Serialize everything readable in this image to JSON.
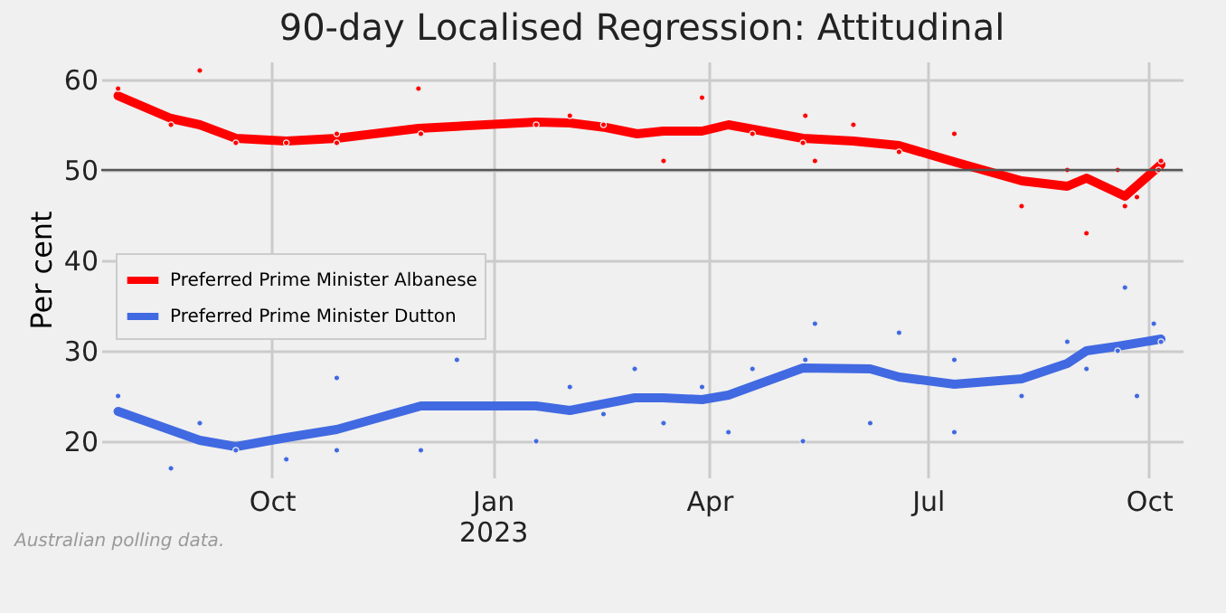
{
  "chart_data": {
    "type": "line",
    "title": "90-day Localised Regression: Attitudinal",
    "ylabel": "Per cent",
    "annotations": [
      "Australian polling data."
    ],
    "xlim": [
      "2022-07-22",
      "2023-10-15"
    ],
    "xticks": [
      {
        "value": "2022-10-01",
        "label": "Oct"
      },
      {
        "value": "2023-01-01",
        "label": "Jan\n2023"
      },
      {
        "value": "2023-04-01",
        "label": "Apr"
      },
      {
        "value": "2023-07-01",
        "label": "Jul"
      },
      {
        "value": "2023-10-01",
        "label": "Oct"
      }
    ],
    "ylim": [
      16,
      62
    ],
    "yticks": [
      20,
      30,
      40,
      50,
      60
    ],
    "grid": true,
    "legend": "left",
    "ref_lines": [
      {
        "axis": "y",
        "value": 50,
        "color": "#555555"
      }
    ],
    "series": [
      {
        "type": "scatter",
        "color": "#ff0000",
        "marker": "circle",
        "x": [
          "2022-07-29",
          "2022-08-20",
          "2022-09-01",
          "2022-09-16",
          "2022-10-07",
          "2022-10-28",
          "2022-10-28",
          "2022-12-01",
          "2022-12-02",
          "2023-01-19",
          "2023-02-02",
          "2023-02-16",
          "2023-03-13",
          "2023-03-29",
          "2023-04-19",
          "2023-05-10",
          "2023-05-11",
          "2023-05-15",
          "2023-05-31",
          "2023-06-19",
          "2023-07-12",
          "2023-08-09",
          "2023-08-28",
          "2023-09-05",
          "2023-09-18",
          "2023-09-21",
          "2023-09-26",
          "2023-10-05",
          "2023-10-06"
        ],
        "values": [
          59,
          55,
          61,
          53,
          53,
          54,
          53,
          59,
          54,
          55,
          56,
          55,
          51,
          58,
          54,
          53,
          56,
          51,
          55,
          52,
          54,
          46,
          50,
          43,
          50,
          46,
          47,
          50,
          51
        ]
      },
      {
        "type": "scatter",
        "color": "#4169e1",
        "marker": "circle",
        "x": [
          "2022-07-29",
          "2022-08-20",
          "2022-09-01",
          "2022-09-16",
          "2022-10-07",
          "2022-10-28",
          "2022-10-28",
          "2022-12-02",
          "2022-12-17",
          "2023-01-19",
          "2023-02-02",
          "2023-02-16",
          "2023-03-01",
          "2023-03-13",
          "2023-03-29",
          "2023-04-09",
          "2023-04-19",
          "2023-05-10",
          "2023-05-11",
          "2023-05-15",
          "2023-06-07",
          "2023-06-19",
          "2023-07-12",
          "2023-07-12",
          "2023-08-09",
          "2023-08-28",
          "2023-09-05",
          "2023-09-18",
          "2023-09-21",
          "2023-09-26",
          "2023-10-03",
          "2023-10-06"
        ],
        "values": [
          25,
          17,
          22,
          19,
          18,
          27,
          19,
          19,
          29,
          20,
          26,
          23,
          28,
          22,
          26,
          21,
          28,
          20,
          29,
          33,
          22,
          32,
          29,
          21,
          25,
          31,
          28,
          30,
          37,
          25,
          33,
          31
        ]
      },
      {
        "type": "line",
        "name": "Preferred Prime Minister Albanese",
        "color": "#ff0000",
        "x": [
          "2022-07-29",
          "2022-08-20",
          "2022-09-01",
          "2022-09-16",
          "2022-10-07",
          "2022-10-28",
          "2022-12-01",
          "2023-01-19",
          "2023-02-02",
          "2023-02-17",
          "2023-03-02",
          "2023-03-13",
          "2023-03-29",
          "2023-04-09",
          "2023-05-10",
          "2023-05-31",
          "2023-06-19",
          "2023-07-12",
          "2023-08-09",
          "2023-08-28",
          "2023-09-05",
          "2023-09-21",
          "2023-10-06"
        ],
        "values": [
          58.2,
          55.7,
          55,
          53.5,
          53.2,
          53.5,
          54.6,
          55.3,
          55.2,
          54.7,
          54,
          54.3,
          54.3,
          55,
          53.5,
          53.2,
          52.7,
          50.9,
          48.8,
          48.2,
          49.1,
          47.1,
          50.6
        ]
      },
      {
        "type": "line",
        "name": "Preferred Prime Minister Dutton",
        "color": "#4169e1",
        "x": [
          "2022-07-29",
          "2022-09-01",
          "2022-09-16",
          "2022-10-07",
          "2022-10-28",
          "2022-12-02",
          "2023-01-19",
          "2023-02-02",
          "2023-03-01",
          "2023-03-13",
          "2023-03-29",
          "2023-04-09",
          "2023-05-10",
          "2023-06-07",
          "2023-06-19",
          "2023-07-12",
          "2023-08-09",
          "2023-08-28",
          "2023-09-05",
          "2023-09-18",
          "2023-10-06"
        ],
        "values": [
          23.3,
          20.1,
          19.4,
          20.4,
          21.3,
          23.9,
          23.9,
          23.4,
          24.8,
          24.8,
          24.6,
          25.1,
          28.1,
          28,
          27.1,
          26.3,
          26.9,
          28.6,
          30,
          30.5,
          31.3
        ]
      }
    ]
  }
}
